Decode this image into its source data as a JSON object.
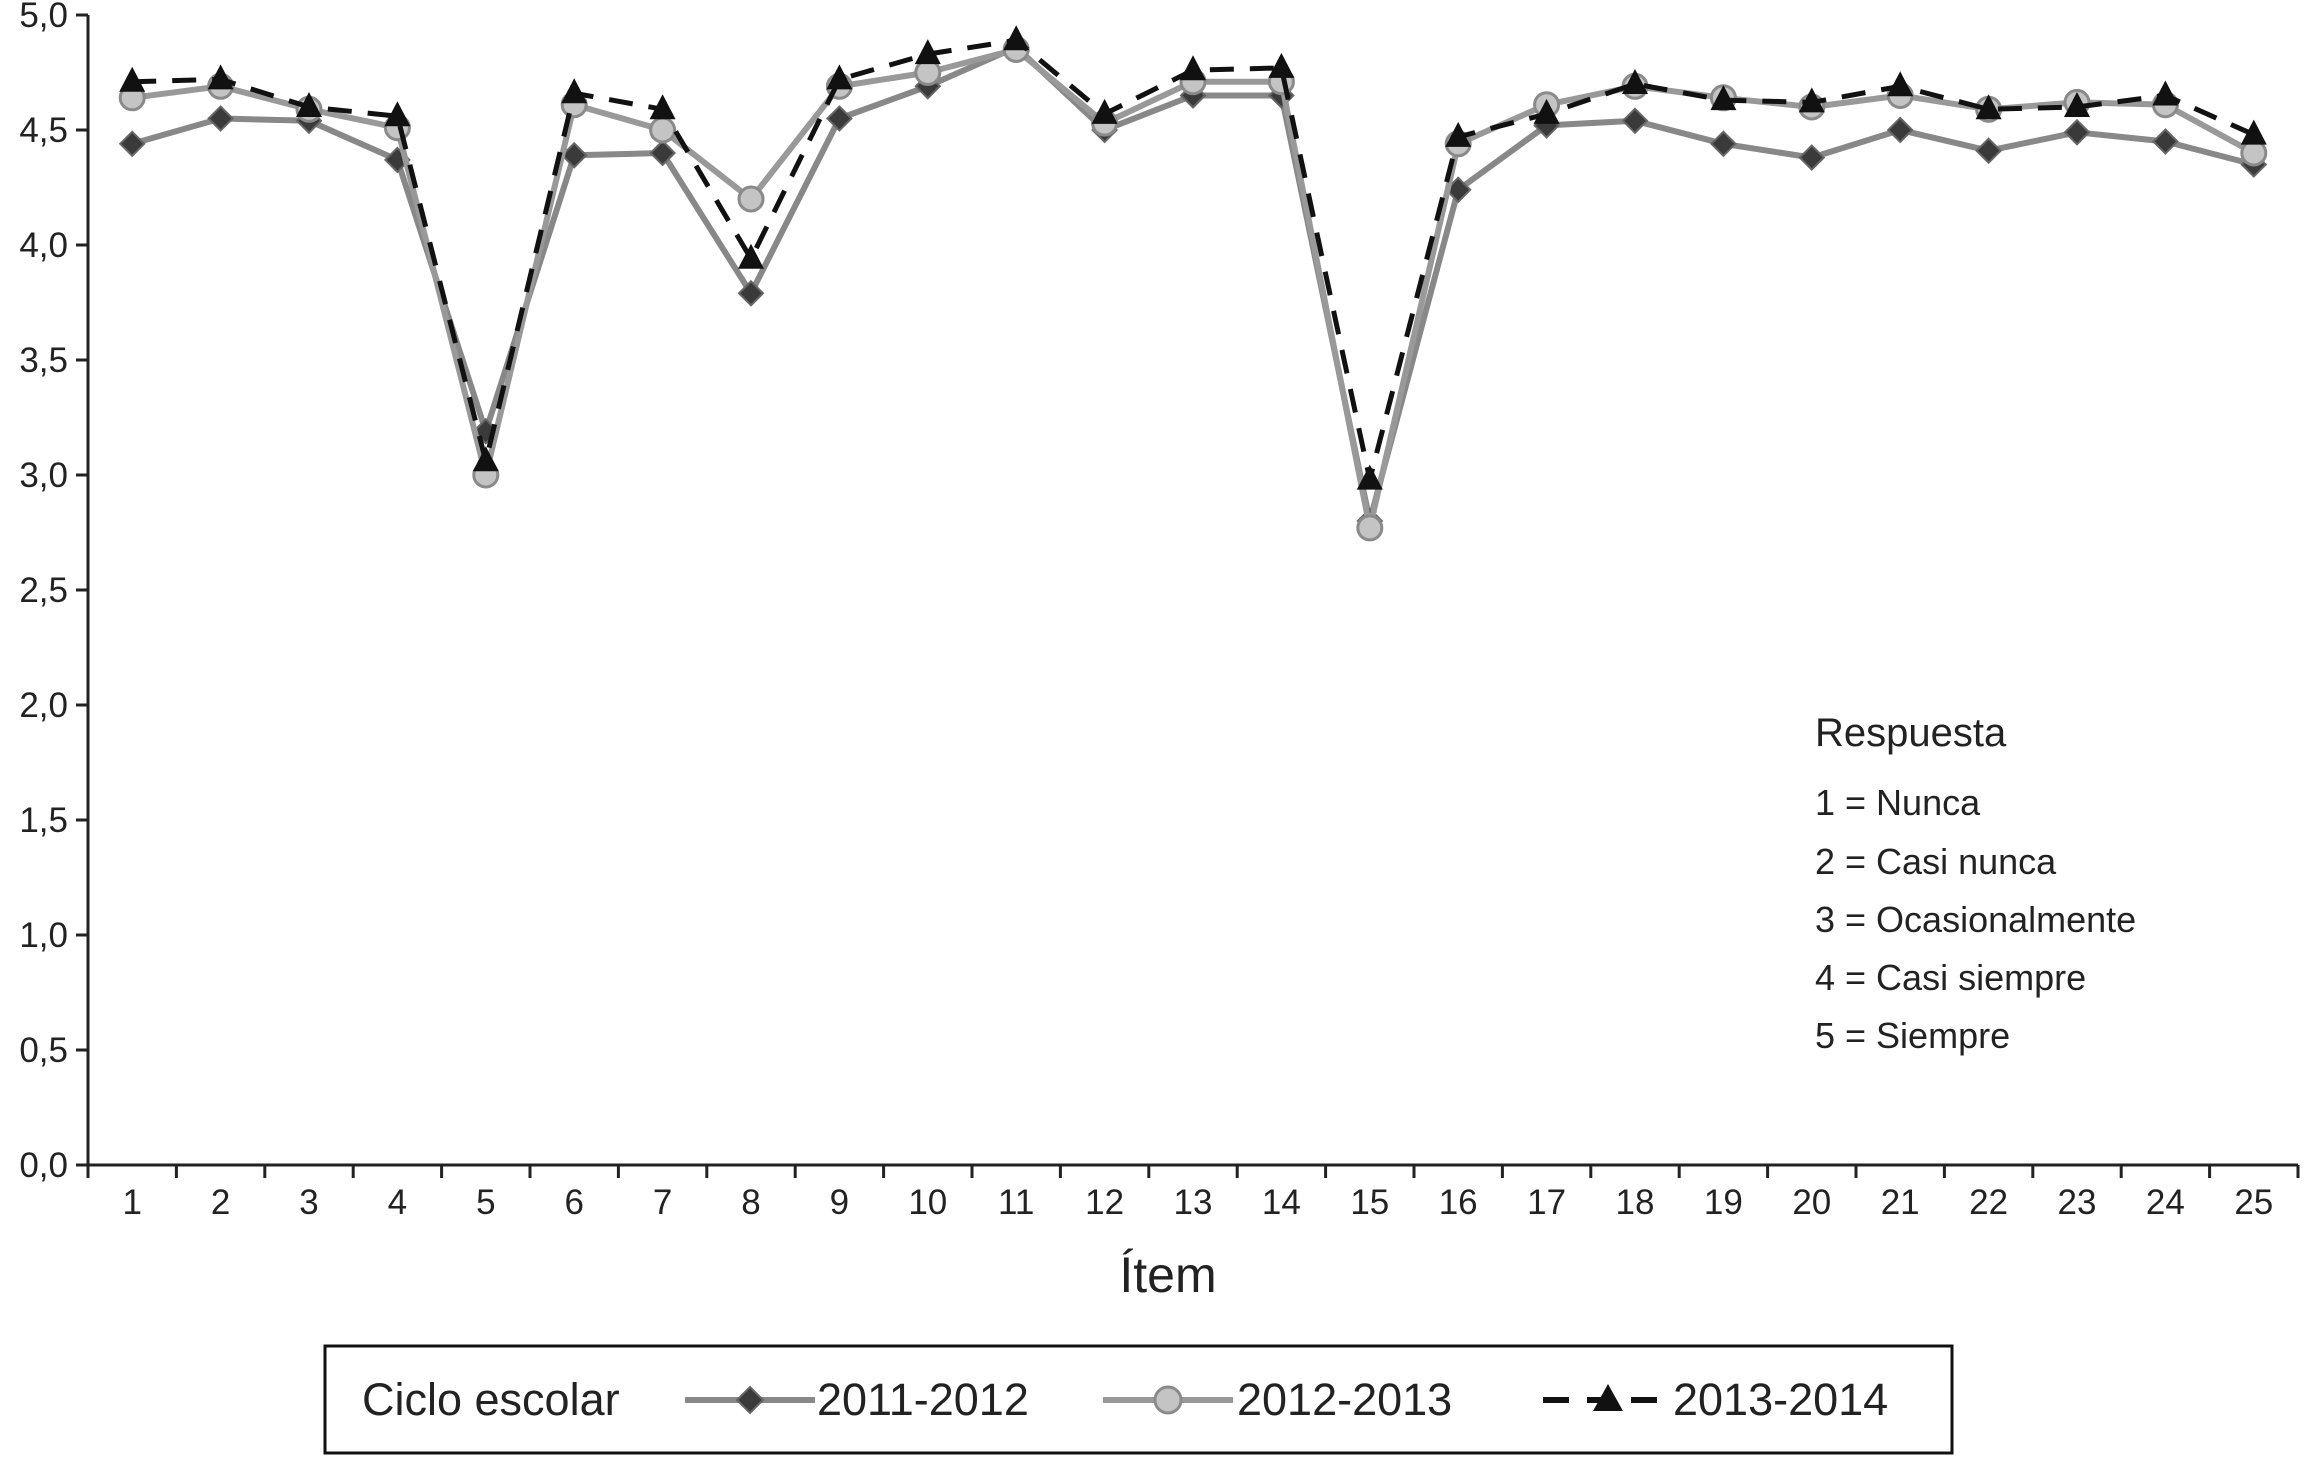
{
  "chart_data": {
    "type": "line",
    "xlabel": "Ítem",
    "ylabel": "",
    "ylim": [
      0,
      5
    ],
    "yticks": [
      "0,0",
      "0,5",
      "1,0",
      "1,5",
      "2,0",
      "2,5",
      "3,0",
      "3,5",
      "4,0",
      "4,5",
      "5,0"
    ],
    "categories": [
      "1",
      "2",
      "3",
      "4",
      "5",
      "6",
      "7",
      "8",
      "9",
      "10",
      "11",
      "12",
      "13",
      "14",
      "15",
      "16",
      "17",
      "18",
      "19",
      "20",
      "21",
      "22",
      "23",
      "24",
      "25"
    ],
    "grid": false,
    "series": [
      {
        "name": "2011-2012",
        "color": "#888888",
        "line": "solid",
        "marker": "diamond",
        "values": [
          4.44,
          4.55,
          4.54,
          4.37,
          3.19,
          4.39,
          4.4,
          3.79,
          4.55,
          4.69,
          4.86,
          4.5,
          4.65,
          4.65,
          2.8,
          4.24,
          4.52,
          4.54,
          4.44,
          4.38,
          4.5,
          4.41,
          4.49,
          4.45,
          4.35
        ]
      },
      {
        "name": "2012-2013",
        "color": "#999999",
        "line": "solid",
        "marker": "circle",
        "values": [
          4.64,
          4.69,
          4.59,
          4.51,
          3.0,
          4.61,
          4.5,
          4.2,
          4.69,
          4.75,
          4.85,
          4.53,
          4.71,
          4.71,
          2.77,
          4.44,
          4.61,
          4.69,
          4.64,
          4.6,
          4.65,
          4.59,
          4.62,
          4.61,
          4.4
        ]
      },
      {
        "name": "2013-2014",
        "color": "#111111",
        "line": "dashed",
        "marker": "triangle",
        "values": [
          4.71,
          4.72,
          4.6,
          4.56,
          3.06,
          4.66,
          4.59,
          3.94,
          4.72,
          4.83,
          4.89,
          4.57,
          4.76,
          4.77,
          2.98,
          4.47,
          4.57,
          4.7,
          4.63,
          4.62,
          4.69,
          4.59,
          4.6,
          4.65,
          4.48
        ]
      }
    ],
    "annotation": {
      "title": "Respuesta",
      "lines": [
        "1 = Nunca",
        "2 = Casi nunca",
        "3 = Ocasionalmente",
        "4 = Casi siempre",
        "5 = Siempre"
      ]
    },
    "legend": {
      "title": "Ciclo escolar",
      "position": "bottom"
    }
  }
}
